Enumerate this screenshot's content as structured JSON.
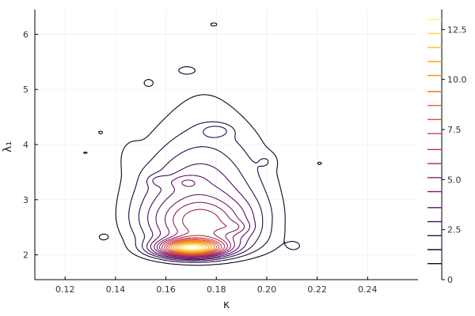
{
  "chart_data": {
    "type": "contour",
    "xlabel": "κ",
    "ylabel": "λ₁",
    "xlim": [
      0.108,
      0.26
    ],
    "ylim": [
      1.55,
      6.45
    ],
    "x_ticks": [
      "0.12",
      "0.14",
      "0.16",
      "0.18",
      "0.20",
      "0.22",
      "0.24"
    ],
    "y_ticks": [
      "2",
      "3",
      "4",
      "5",
      "6"
    ],
    "grid": true,
    "colorbar": {
      "min": 0,
      "max": 13.5,
      "ticks": [
        "0",
        "2.5",
        "5.0",
        "7.5",
        "10.0",
        "12.5"
      ],
      "colormap": "inferno"
    },
    "contour_levels": [
      0.8,
      1.5,
      2.2,
      2.9,
      3.6,
      4.4,
      5.1,
      5.8,
      6.5,
      7.3,
      8.0,
      8.7,
      9.4,
      10.2,
      10.9,
      11.6,
      12.3,
      13.0
    ],
    "density_peak": {
      "kappa": 0.17,
      "lambda1": 2.15
    },
    "density_max": 13.2
  }
}
